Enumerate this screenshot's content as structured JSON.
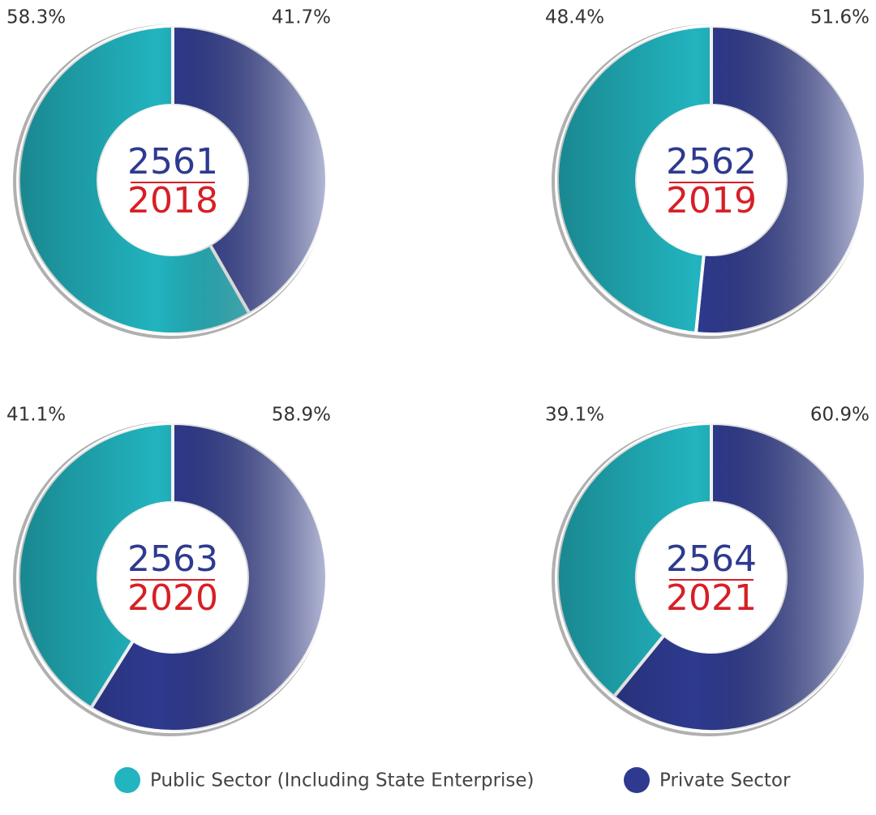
{
  "legend": {
    "labels": [
      "Public Sector (Including State Enterprise)",
      "Private Sector"
    ],
    "colors": [
      "#22b4bf",
      "#2e3a8f"
    ]
  },
  "chart_data": [
    {
      "type": "pie",
      "title": "2561",
      "subtitle": "2018",
      "values": [
        58.3,
        41.7
      ],
      "value_labels": [
        "58.3%",
        "41.7%"
      ]
    },
    {
      "type": "pie",
      "title": "2562",
      "subtitle": "2019",
      "values": [
        48.4,
        51.6
      ],
      "value_labels": [
        "48.4%",
        "51.6%"
      ]
    },
    {
      "type": "pie",
      "title": "2563",
      "subtitle": "2020",
      "values": [
        41.1,
        58.9
      ],
      "value_labels": [
        "41.1%",
        "58.9%"
      ]
    },
    {
      "type": "pie",
      "title": "2564",
      "subtitle": "2021",
      "values": [
        39.1,
        60.9
      ],
      "value_labels": [
        "39.1%",
        "60.9%"
      ]
    }
  ]
}
